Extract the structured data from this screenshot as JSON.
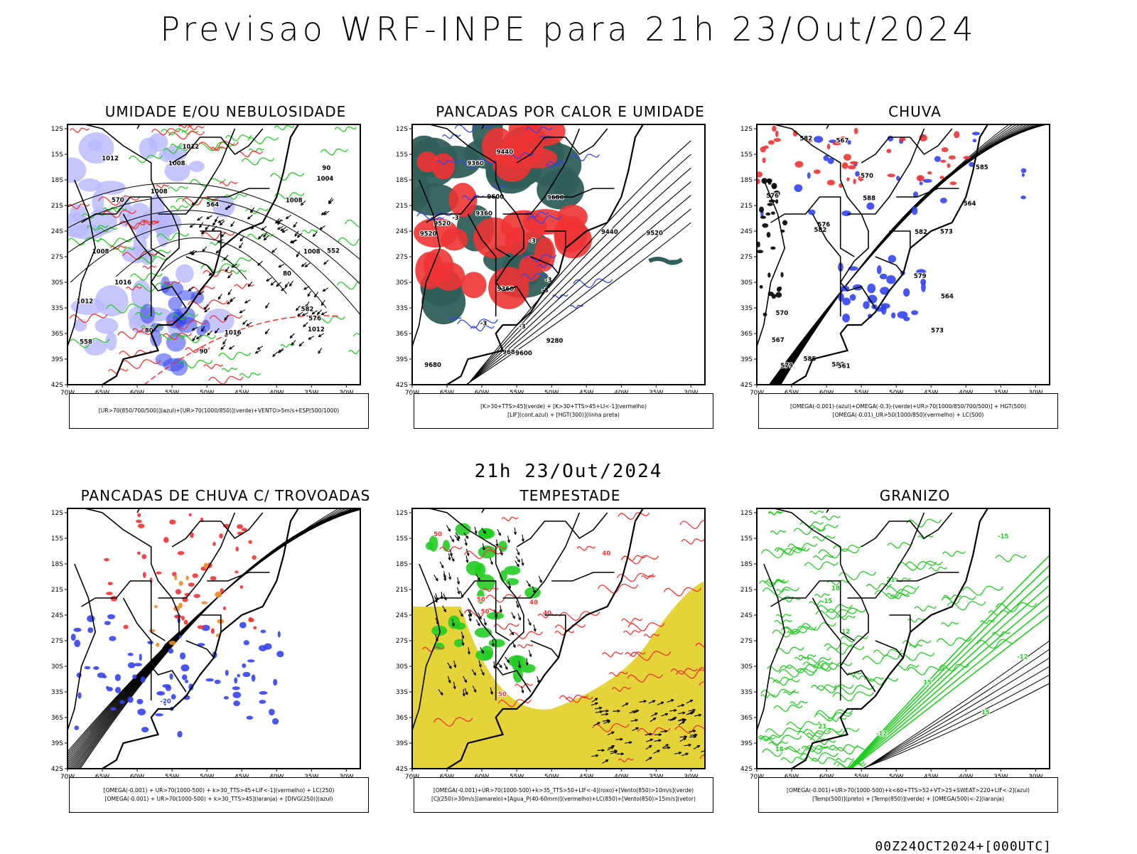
{
  "title": "Previsao WRF-INPE  para 21h 23/Out/2024",
  "mid_title": "21h 23/Out/2024",
  "footer": "00Z24OCT2024+[000UTC]",
  "lat_labels": [
    "12S",
    "15S",
    "18S",
    "21S",
    "24S",
    "27S",
    "30S",
    "33S",
    "36S",
    "39S",
    "42S"
  ],
  "lon_labels": [
    "70W",
    "65W",
    "60W",
    "55W",
    "50W",
    "45W",
    "40W",
    "35W",
    "30W"
  ],
  "colors": {
    "azul": "#3344ee",
    "verde": "#22cc22",
    "vermelho": "#ee3333",
    "preto": "#000000",
    "laranja": "#ee8822",
    "amarelo": "#e3d22e",
    "lightblue": "#b8b8ff",
    "darkgreen": "#2f5f5a"
  },
  "panels": [
    {
      "title": "UMIDADE E/OU NEBULOSIDADE",
      "legend": [
        "[UR>70(850/700/500)](azul)+[UR>70(1000/850)](verde)+VENTO>5m/s+ESP(500/1000)"
      ],
      "labels": [
        "1008",
        "1008",
        "1012",
        "1016",
        "1012",
        "1008",
        "1016",
        "1012",
        "1008",
        "1004",
        "1008",
        "1012",
        "80",
        "80",
        "90",
        "90",
        "552",
        "558",
        "576",
        "570",
        "564",
        "582"
      ]
    },
    {
      "title": "PANCADAS POR CALOR E UMIDADE",
      "legend": [
        "[K>30+TTS>45](verde) + [K>30+TTS>45+LI<-1](vermelho)",
        "[LIF](cont.azul) + [HGT(300)](linha preta)"
      ],
      "labels": [
        "9680",
        "9680",
        "9600",
        "9520",
        "9360",
        "9280",
        "9440",
        "9520",
        "9600",
        "9600",
        "9520",
        "9440",
        "9360",
        "9360",
        "-3",
        "-3",
        "-3",
        "-3",
        "-3",
        "-3"
      ]
    },
    {
      "title": "CHUVA",
      "legend": [
        "[OMEGA(-0.001)-(azul)+OMEGA(-0.3)-(verde)+UR>70(1000/850/700/500)] + HGT(500)",
        "[OMEGA(-0.01)_UR>50(1000/850)(vermelho) + LC(500)"
      ],
      "labels": [
        "588",
        "585",
        "585",
        "585",
        "582",
        "582",
        "579",
        "576",
        "573",
        "570",
        "567",
        "564",
        "582",
        "579",
        "576",
        "573",
        "570",
        "567",
        "561",
        "564"
      ]
    },
    {
      "title": "PANCADAS DE CHUVA C/ TROVOADAS",
      "legend": [
        "[OMEGA(-0.001) + UR>70(1000-500) + k>30_TTS>45+LIF<-1](vermelho) + LC(250)",
        "[OMEGA(-0.001) + UR>70(1000-500) + k>30_TTS>45](laranja) + [DIVG(250)](azul)"
      ],
      "labels": [
        "-20"
      ]
    },
    {
      "title": "TEMPESTADE",
      "legend": [
        "[OMEGA(-0.001)+UR>70(1000-500)+k>35_TTS>50+LIF<-4](roxo)+[Vento(850)>10m/s](verde)",
        "[CJ(250)>30m/s](amarelo)+[Agua_P(40-60mm)](vermelho)+LC(850)+[Vento(850)>15m/s](vetor)"
      ],
      "labels": [
        "50",
        "40",
        "50",
        "40",
        "50",
        "40",
        "50"
      ]
    },
    {
      "title": "GRANIZO",
      "legend": [
        "[OMEGA(-0.001)+UR>70(1000-500)+k<60+TTS>52+VT>25+SWEAT>220+LIF<-2](azul)",
        "[Temp(500)](preto) + [Temp(850)](verde) + [OMEGA(500)<-2](laranja)"
      ],
      "labels": [
        "21",
        "21",
        "18",
        "15",
        "15",
        "12",
        "18",
        "15",
        "-12",
        "-12",
        "-15"
      ]
    }
  ]
}
